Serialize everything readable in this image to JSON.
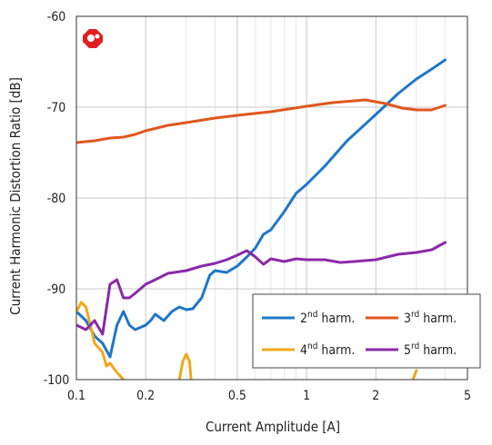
{
  "chart_data": {
    "type": "line",
    "xlabel": "Current Amplitude [A]",
    "ylabel": "Current Harmonic Distortion Ratio [dB]",
    "xscale": "log",
    "xlim": [
      0.1,
      5
    ],
    "ylim": [
      -100,
      -60
    ],
    "grid": true,
    "legend_position": "bottom-right",
    "x_ticks": [
      "0.1",
      "0.2",
      "0.5",
      "1",
      "2",
      "5"
    ],
    "x_tick_values": [
      0.1,
      0.2,
      0.5,
      1,
      2,
      5
    ],
    "y_ticks": [
      "-60",
      "-70",
      "-80",
      "-90",
      "-100"
    ],
    "y_tick_values": [
      -60,
      -70,
      -80,
      -90,
      -100
    ],
    "logo_icon": "red-logo-icon",
    "series": [
      {
        "label_base": "2",
        "label_sup": "nd",
        "label_rest": " harm.",
        "color": "#1f77c9",
        "points": [
          [
            0.1,
            -92.5
          ],
          [
            0.11,
            -93.5
          ],
          [
            0.12,
            -95.2
          ],
          [
            0.13,
            -96.0
          ],
          [
            0.14,
            -97.5
          ],
          [
            0.15,
            -94.0
          ],
          [
            0.16,
            -92.5
          ],
          [
            0.17,
            -94.0
          ],
          [
            0.18,
            -94.5
          ],
          [
            0.2,
            -94.0
          ],
          [
            0.21,
            -93.5
          ],
          [
            0.22,
            -92.8
          ],
          [
            0.24,
            -93.5
          ],
          [
            0.26,
            -92.5
          ],
          [
            0.28,
            -92.0
          ],
          [
            0.3,
            -92.3
          ],
          [
            0.32,
            -92.2
          ],
          [
            0.35,
            -91.0
          ],
          [
            0.38,
            -88.5
          ],
          [
            0.4,
            -88.0
          ],
          [
            0.45,
            -88.2
          ],
          [
            0.5,
            -87.5
          ],
          [
            0.55,
            -86.5
          ],
          [
            0.6,
            -85.5
          ],
          [
            0.65,
            -84.0
          ],
          [
            0.7,
            -83.5
          ],
          [
            0.8,
            -81.5
          ],
          [
            0.9,
            -79.5
          ],
          [
            1.0,
            -78.5
          ],
          [
            1.2,
            -76.5
          ],
          [
            1.5,
            -73.7
          ],
          [
            2.0,
            -70.8
          ],
          [
            2.5,
            -68.5
          ],
          [
            3.0,
            -66.9
          ],
          [
            3.5,
            -65.8
          ],
          [
            4.0,
            -64.8
          ]
        ]
      },
      {
        "label_base": "3",
        "label_sup": "rd",
        "label_rest": " harm.",
        "color": "#e0571e",
        "points": [
          [
            0.1,
            -73.9
          ],
          [
            0.12,
            -73.7
          ],
          [
            0.14,
            -73.4
          ],
          [
            0.16,
            -73.3
          ],
          [
            0.18,
            -73.0
          ],
          [
            0.2,
            -72.6
          ],
          [
            0.25,
            -72.0
          ],
          [
            0.3,
            -71.7
          ],
          [
            0.4,
            -71.2
          ],
          [
            0.5,
            -70.9
          ],
          [
            0.7,
            -70.5
          ],
          [
            1.0,
            -69.9
          ],
          [
            1.3,
            -69.5
          ],
          [
            1.8,
            -69.2
          ],
          [
            2.2,
            -69.6
          ],
          [
            2.6,
            -70.1
          ],
          [
            3.0,
            -70.3
          ],
          [
            3.5,
            -70.3
          ],
          [
            4.0,
            -69.8
          ]
        ]
      },
      {
        "label_base": "4",
        "label_sup": "nd",
        "label_rest": " harm.",
        "color": "#f0a81a",
        "points": [
          [
            0.1,
            -92.5
          ],
          [
            0.105,
            -91.5
          ],
          [
            0.11,
            -92.0
          ],
          [
            0.115,
            -94.0
          ],
          [
            0.12,
            -96.0
          ],
          [
            0.13,
            -97.0
          ],
          [
            0.135,
            -98.5
          ],
          [
            0.14,
            -98.2
          ],
          [
            0.15,
            -99.2
          ],
          [
            0.16,
            -100.0
          ]
        ],
        "segments": [
          [
            [
              0.28,
              -100.0
            ],
            [
              0.29,
              -98.0
            ],
            [
              0.3,
              -97.2
            ],
            [
              0.31,
              -98.0
            ],
            [
              0.315,
              -100.0
            ]
          ],
          [
            [
              2.9,
              -100.0
            ],
            [
              3.0,
              -99.0
            ]
          ]
        ]
      },
      {
        "label_base": "5",
        "label_sup": "rd",
        "label_rest": " harm.",
        "color": "#8a2aa8",
        "points": [
          [
            0.1,
            -94.0
          ],
          [
            0.11,
            -94.5
          ],
          [
            0.12,
            -93.5
          ],
          [
            0.13,
            -95.0
          ],
          [
            0.14,
            -89.5
          ],
          [
            0.15,
            -89.0
          ],
          [
            0.16,
            -91.0
          ],
          [
            0.17,
            -91.0
          ],
          [
            0.18,
            -90.5
          ],
          [
            0.2,
            -89.5
          ],
          [
            0.22,
            -89.0
          ],
          [
            0.25,
            -88.3
          ],
          [
            0.3,
            -88.0
          ],
          [
            0.35,
            -87.5
          ],
          [
            0.4,
            -87.2
          ],
          [
            0.45,
            -86.8
          ],
          [
            0.5,
            -86.3
          ],
          [
            0.55,
            -85.8
          ],
          [
            0.6,
            -86.5
          ],
          [
            0.65,
            -87.3
          ],
          [
            0.7,
            -86.7
          ],
          [
            0.8,
            -87.0
          ],
          [
            0.9,
            -86.7
          ],
          [
            1.0,
            -86.8
          ],
          [
            1.2,
            -86.8
          ],
          [
            1.4,
            -87.1
          ],
          [
            1.6,
            -87.0
          ],
          [
            2.0,
            -86.8
          ],
          [
            2.5,
            -86.2
          ],
          [
            3.0,
            -86.0
          ],
          [
            3.5,
            -85.7
          ],
          [
            4.0,
            -84.9
          ]
        ]
      }
    ]
  }
}
